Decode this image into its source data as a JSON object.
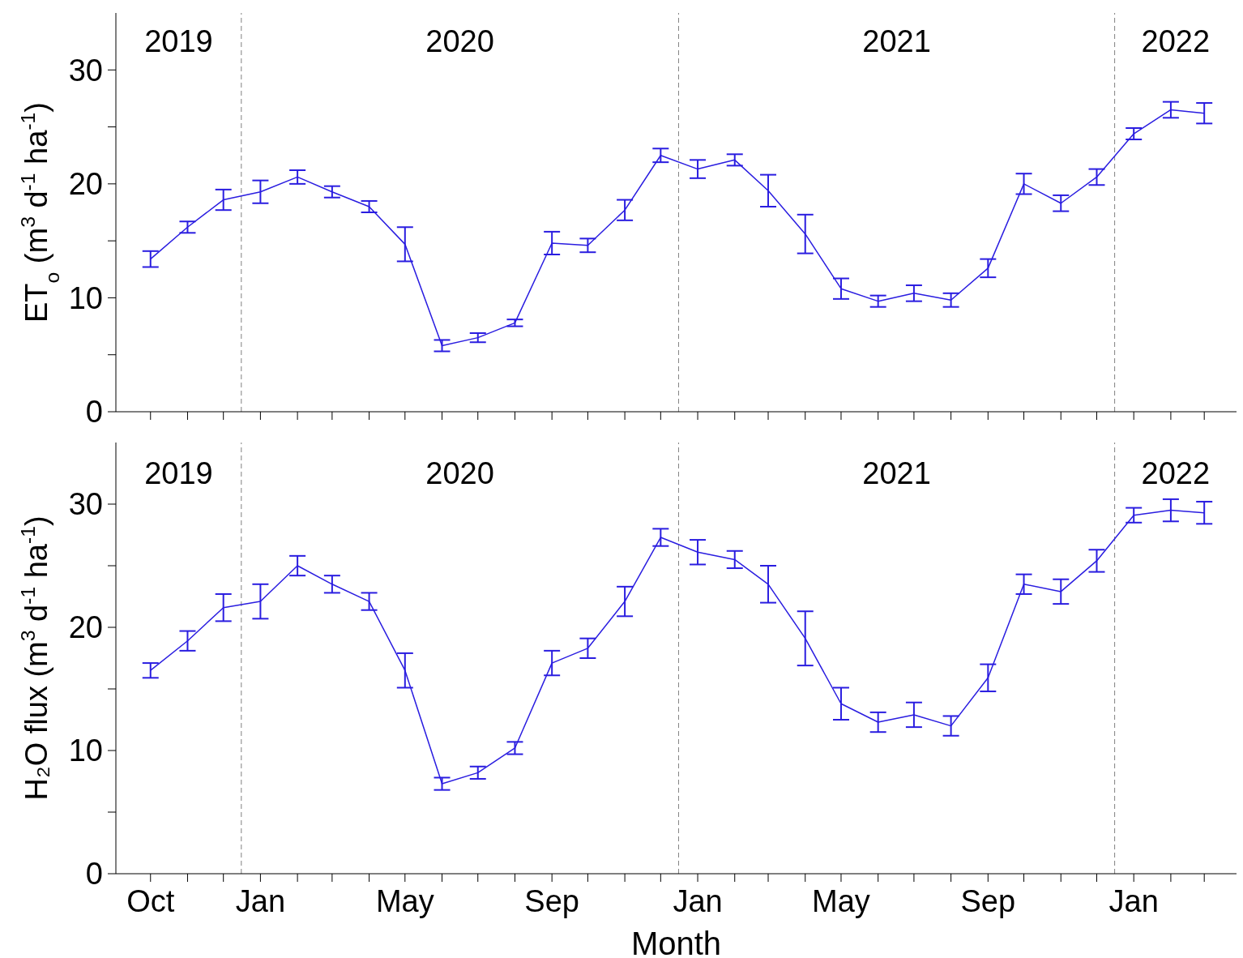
{
  "chart_data": [
    {
      "type": "line",
      "ylabel": "ET$_{o}$ (m$^{3}$ d$^{-1}$ ha$^{-1}$)",
      "tick_labels": "y",
      "x": [
        "2019-10",
        "2019-11",
        "2019-12",
        "2020-01",
        "2020-02",
        "2020-03",
        "2020-04",
        "2020-05",
        "2020-06",
        "2020-07",
        "2020-08",
        "2020-09",
        "2020-10",
        "2020-11",
        "2020-12",
        "2021-01",
        "2021-02",
        "2021-03",
        "2021-04",
        "2021-05",
        "2021-06",
        "2021-07",
        "2021-08",
        "2021-09",
        "2021-10",
        "2021-11",
        "2021-12",
        "2022-01",
        "2022-02",
        "2022-03"
      ],
      "series": [
        {
          "color": "#2a1de0",
          "values": [
            13.4,
            16.2,
            18.6,
            19.3,
            20.6,
            19.3,
            18.0,
            14.7,
            5.8,
            6.5,
            7.8,
            14.8,
            14.6,
            17.7,
            22.5,
            21.3,
            22.1,
            19.4,
            15.6,
            10.8,
            9.7,
            10.4,
            9.8,
            12.6,
            20.0,
            18.3,
            20.6,
            24.4,
            26.5,
            26.2
          ],
          "errors": [
            0.7,
            0.5,
            0.9,
            1.0,
            0.6,
            0.5,
            0.5,
            1.5,
            0.5,
            0.4,
            0.3,
            1.0,
            0.6,
            0.9,
            0.6,
            0.8,
            0.5,
            1.4,
            1.7,
            0.9,
            0.5,
            0.7,
            0.6,
            0.8,
            0.9,
            0.7,
            0.7,
            0.5,
            0.7,
            0.9
          ]
        }
      ],
      "xlim": [
        "2019-09-02",
        "2022-03-28"
      ],
      "xticks": [
        {
          "value": "2019-10",
          "label": null
        },
        {
          "value": "2019-11",
          "label": null
        },
        {
          "value": "2019-12",
          "label": null
        },
        {
          "value": "2020-01",
          "label": null
        },
        {
          "value": "2020-02",
          "label": null
        },
        {
          "value": "2020-03",
          "label": null
        },
        {
          "value": "2020-04",
          "label": null
        },
        {
          "value": "2020-05",
          "label": null
        },
        {
          "value": "2020-06",
          "label": null
        },
        {
          "value": "2020-07",
          "label": null
        },
        {
          "value": "2020-08",
          "label": null
        },
        {
          "value": "2020-09",
          "label": null
        },
        {
          "value": "2020-10",
          "label": null
        },
        {
          "value": "2020-11",
          "label": null
        },
        {
          "value": "2020-12",
          "label": null
        },
        {
          "value": "2021-01",
          "label": null
        },
        {
          "value": "2021-02",
          "label": null
        },
        {
          "value": "2021-03",
          "label": null
        },
        {
          "value": "2021-04",
          "label": null
        },
        {
          "value": "2021-05",
          "label": null
        },
        {
          "value": "2021-06",
          "label": null
        },
        {
          "value": "2021-07",
          "label": null
        },
        {
          "value": "2021-08",
          "label": null
        },
        {
          "value": "2021-09",
          "label": null
        },
        {
          "value": "2021-10",
          "label": null
        },
        {
          "value": "2021-11",
          "label": null
        },
        {
          "value": "2021-12",
          "label": null
        },
        {
          "value": "2022-01",
          "label": null
        },
        {
          "value": "2022-02",
          "label": null
        },
        {
          "value": "2022-03",
          "label": null
        }
      ],
      "ylim": [
        0,
        35
      ],
      "yticks": [
        0,
        {
          "value": 5,
          "label": null
        },
        10,
        {
          "value": 15,
          "label": null
        },
        20,
        {
          "value": 25,
          "label": null
        },
        30
      ],
      "ref_lines": [
        {
          "axis": "x",
          "value": "2019-12-16",
          "line_style": "dashed",
          "color": "#808080"
        },
        {
          "axis": "x",
          "value": "2020-12-16",
          "line_style": "dashed",
          "color": "#808080"
        },
        {
          "axis": "x",
          "value": "2021-12-16",
          "line_style": "dashed",
          "color": "#808080"
        }
      ],
      "annotations": [
        "2019",
        "2020",
        "2021",
        "2022"
      ]
    },
    {
      "type": "line",
      "ylabel": "H₂O flux (m$^{3}$ d$^{-1}$ ha$^{-1}$)",
      "xlabel": "Month",
      "x": [
        "2019-10",
        "2019-11",
        "2019-12",
        "2020-01",
        "2020-02",
        "2020-03",
        "2020-04",
        "2020-05",
        "2020-06",
        "2020-07",
        "2020-08",
        "2020-09",
        "2020-10",
        "2020-11",
        "2020-12",
        "2021-01",
        "2021-02",
        "2021-03",
        "2021-04",
        "2021-05",
        "2021-06",
        "2021-07",
        "2021-08",
        "2021-09",
        "2021-10",
        "2021-11",
        "2021-12",
        "2022-01",
        "2022-02",
        "2022-03"
      ],
      "series": [
        {
          "color": "#2a1de0",
          "values": [
            16.5,
            18.9,
            21.6,
            22.1,
            25.0,
            23.5,
            22.1,
            16.5,
            7.3,
            8.2,
            10.2,
            17.1,
            18.3,
            22.1,
            27.3,
            26.1,
            25.5,
            23.5,
            19.1,
            13.8,
            12.3,
            12.9,
            12.0,
            15.9,
            23.5,
            22.9,
            25.4,
            29.1,
            29.5,
            29.3
          ],
          "errors": [
            0.6,
            0.8,
            1.1,
            1.4,
            0.8,
            0.7,
            0.7,
            1.4,
            0.5,
            0.5,
            0.5,
            1.0,
            0.8,
            1.2,
            0.7,
            1.0,
            0.7,
            1.5,
            2.2,
            1.3,
            0.8,
            1.0,
            0.8,
            1.1,
            0.8,
            1.0,
            0.9,
            0.6,
            0.9,
            0.9
          ]
        }
      ],
      "xlim": [
        "2019-09-02",
        "2022-03-28"
      ],
      "xticks": [
        {
          "value": "2019-10",
          "label": "Oct"
        },
        {
          "value": "2019-11",
          "label": null
        },
        {
          "value": "2019-12",
          "label": null
        },
        {
          "value": "2020-01",
          "label": "Jan"
        },
        {
          "value": "2020-02",
          "label": null
        },
        {
          "value": "2020-03",
          "label": null
        },
        {
          "value": "2020-04",
          "label": null
        },
        {
          "value": "2020-05",
          "label": "May"
        },
        {
          "value": "2020-06",
          "label": null
        },
        {
          "value": "2020-07",
          "label": null
        },
        {
          "value": "2020-08",
          "label": null
        },
        {
          "value": "2020-09",
          "label": "Sep"
        },
        {
          "value": "2020-10",
          "label": null
        },
        {
          "value": "2020-11",
          "label": null
        },
        {
          "value": "2020-12",
          "label": null
        },
        {
          "value": "2021-01",
          "label": "Jan"
        },
        {
          "value": "2021-02",
          "label": null
        },
        {
          "value": "2021-03",
          "label": null
        },
        {
          "value": "2021-04",
          "label": null
        },
        {
          "value": "2021-05",
          "label": "May"
        },
        {
          "value": "2021-06",
          "label": null
        },
        {
          "value": "2021-07",
          "label": null
        },
        {
          "value": "2021-08",
          "label": null
        },
        {
          "value": "2021-09",
          "label": "Sep"
        },
        {
          "value": "2021-10",
          "label": null
        },
        {
          "value": "2021-11",
          "label": null
        },
        {
          "value": "2021-12",
          "label": null
        },
        {
          "value": "2022-01",
          "label": "Jan"
        },
        {
          "value": "2022-02",
          "label": null
        },
        {
          "value": "2022-03",
          "label": null
        }
      ],
      "ylim": [
        0,
        35
      ],
      "yticks": [
        0,
        {
          "value": 5,
          "label": null
        },
        10,
        {
          "value": 15,
          "label": null
        },
        20,
        {
          "value": 25,
          "label": null
        },
        30
      ],
      "ref_lines": [
        {
          "axis": "x",
          "value": "2019-12-16",
          "line_style": "dashed",
          "color": "#808080"
        },
        {
          "axis": "x",
          "value": "2020-12-16",
          "line_style": "dashed",
          "color": "#808080"
        },
        {
          "axis": "x",
          "value": "2021-12-16",
          "line_style": "dashed",
          "color": "#808080"
        }
      ],
      "annotations": [
        "2019",
        "2020",
        "2021",
        "2022"
      ]
    }
  ]
}
